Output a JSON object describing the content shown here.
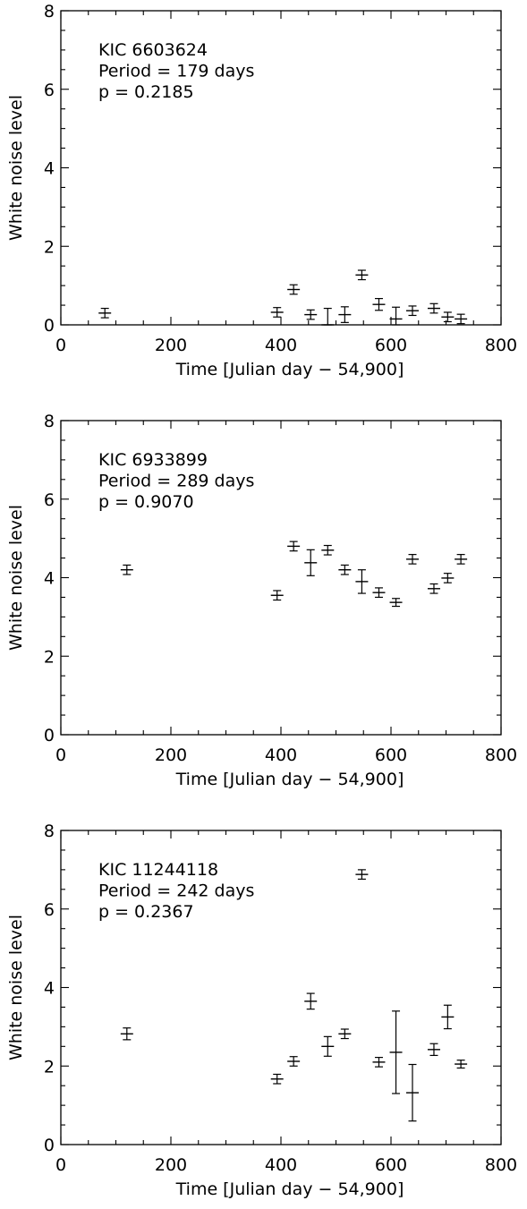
{
  "chart_data": [
    {
      "type": "scatter",
      "xlabel": "Time [Julian day − 54,900]",
      "ylabel": "White noise level",
      "xlim": [
        0,
        800
      ],
      "ylim": [
        0,
        8
      ],
      "xticks": [
        0,
        200,
        400,
        600,
        800
      ],
      "yticks": [
        0,
        2,
        4,
        6,
        8
      ],
      "annotations": [
        "KIC 6603624",
        "Period = 179 days",
        "p = 0.2185"
      ],
      "series": [
        {
          "x": [
            80,
            393,
            423,
            454,
            485,
            516,
            547,
            578,
            609,
            639,
            678,
            703,
            727
          ],
          "y": [
            0.3,
            0.32,
            0.9,
            0.26,
            0.0,
            0.26,
            1.27,
            0.52,
            0.15,
            0.36,
            0.42,
            0.2,
            0.15
          ],
          "err": [
            0.12,
            0.12,
            0.12,
            0.12,
            0.42,
            0.2,
            0.12,
            0.15,
            0.3,
            0.12,
            0.12,
            0.12,
            0.12
          ]
        }
      ]
    },
    {
      "type": "scatter",
      "xlabel": "Time [Julian day − 54,900]",
      "ylabel": "White noise level",
      "xlim": [
        0,
        800
      ],
      "ylim": [
        0,
        8
      ],
      "xticks": [
        0,
        200,
        400,
        600,
        800
      ],
      "yticks": [
        0,
        2,
        4,
        6,
        8
      ],
      "annotations": [
        "KIC 6933899",
        "Period = 289 days",
        "p = 0.9070"
      ],
      "series": [
        {
          "x": [
            120,
            393,
            423,
            454,
            485,
            516,
            547,
            578,
            609,
            639,
            678,
            703,
            727
          ],
          "y": [
            4.2,
            3.55,
            4.8,
            4.38,
            4.7,
            4.2,
            3.9,
            3.62,
            3.37,
            4.47,
            3.72,
            3.99,
            4.47
          ],
          "err": [
            0.12,
            0.12,
            0.12,
            0.33,
            0.12,
            0.12,
            0.3,
            0.12,
            0.1,
            0.12,
            0.12,
            0.12,
            0.12
          ]
        }
      ]
    },
    {
      "type": "scatter",
      "xlabel": "Time [Julian day − 54,900]",
      "ylabel": "White noise level",
      "xlim": [
        0,
        800
      ],
      "ylim": [
        0,
        8
      ],
      "xticks": [
        0,
        200,
        400,
        600,
        800
      ],
      "yticks": [
        0,
        2,
        4,
        6,
        8
      ],
      "annotations": [
        "KIC 11244118",
        "Period = 242 days",
        "p = 0.2367"
      ],
      "series": [
        {
          "x": [
            120,
            393,
            423,
            454,
            485,
            516,
            547,
            578,
            609,
            639,
            678,
            703,
            727
          ],
          "y": [
            2.82,
            1.67,
            2.12,
            3.65,
            2.5,
            2.82,
            6.88,
            2.1,
            2.35,
            1.32,
            2.42,
            3.25,
            2.05
          ],
          "err": [
            0.15,
            0.12,
            0.12,
            0.2,
            0.25,
            0.12,
            0.12,
            0.12,
            1.05,
            0.72,
            0.15,
            0.3,
            0.1
          ]
        }
      ]
    }
  ]
}
